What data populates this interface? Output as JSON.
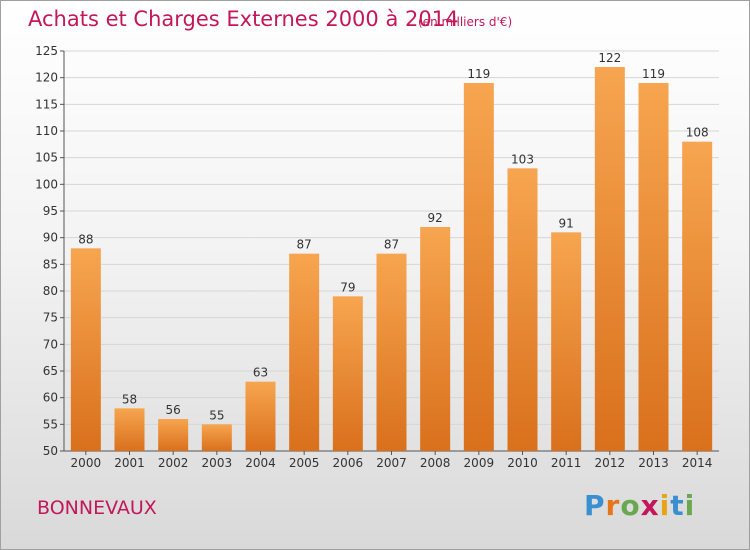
{
  "header": {
    "title": "Achats et Charges Externes 2000 à 2014",
    "subtitle": "(en milliers d'€)"
  },
  "footer": {
    "place": "BONNEVAUX",
    "logo_text": "Proxiti",
    "logo_letters": [
      {
        "ch": "P",
        "color": "#3a8fd0"
      },
      {
        "ch": "r",
        "color": "#e8751a"
      },
      {
        "ch": "o",
        "color": "#6aa84f"
      },
      {
        "ch": "x",
        "color": "#c2185b"
      },
      {
        "ch": "i",
        "color": "#e8a317"
      },
      {
        "ch": "t",
        "color": "#3a8fd0"
      },
      {
        "ch": "i",
        "color": "#6aa84f"
      }
    ]
  },
  "colors": {
    "bar_light": "#f7a550",
    "bar_dark": "#d9701c",
    "grid": "#d6d6d6",
    "title": "#c2185b"
  },
  "chart_data": {
    "type": "bar",
    "title": "Achats et Charges Externes 2000 à 2014",
    "subtitle": "(en milliers d'€)",
    "categories": [
      "2000",
      "2001",
      "2002",
      "2003",
      "2004",
      "2005",
      "2006",
      "2007",
      "2008",
      "2009",
      "2010",
      "2011",
      "2012",
      "2013",
      "2014"
    ],
    "values": [
      88,
      58,
      56,
      55,
      63,
      87,
      79,
      87,
      92,
      119,
      103,
      91,
      122,
      119,
      108
    ],
    "ylim": [
      50,
      125
    ],
    "yticks": [
      50,
      55,
      60,
      65,
      70,
      75,
      80,
      85,
      90,
      95,
      100,
      105,
      110,
      115,
      120,
      125
    ],
    "grid": true,
    "xlabel": "",
    "ylabel": ""
  }
}
